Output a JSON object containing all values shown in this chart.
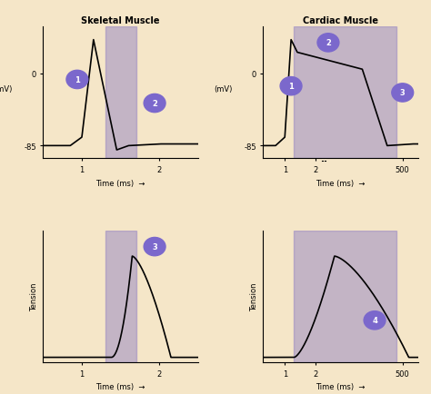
{
  "bg_color": "#f5e6c8",
  "purple_color": "#8878c3",
  "purple_alpha": 0.45,
  "title_skeletal": "Skeletal Muscle",
  "title_cardiac": "Cardiac Muscle",
  "circle_color": "#7b68cc",
  "circle_text_color": "white",
  "line_color": "black",
  "ax_bg": "#f5e6c8",
  "ylabel_ap": "(mV)",
  "ylabel_tension": "Tension",
  "xlabel": "Time (ms)"
}
